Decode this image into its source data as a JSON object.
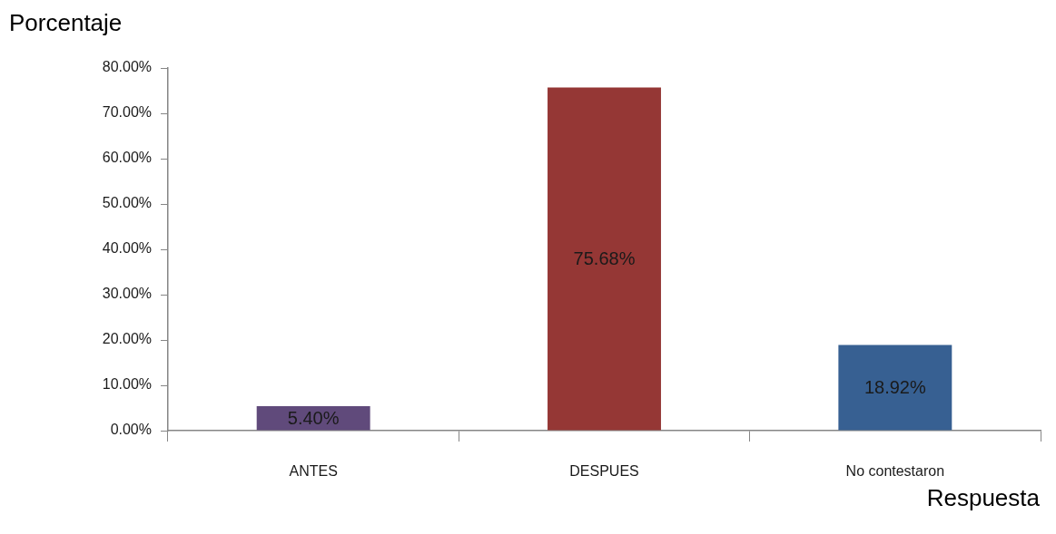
{
  "chart_data": {
    "type": "bar",
    "xlabel": "Respuesta",
    "ylabel": "Porcentaje",
    "categories": [
      "ANTES",
      "DESPUES",
      "No contestaron"
    ],
    "values": [
      5.4,
      75.68,
      18.92
    ],
    "colors": [
      "#604a7b",
      "#953735",
      "#376092"
    ],
    "value_labels": [
      "5.40%",
      "75.68%",
      "18.92%"
    ],
    "ylim": [
      0,
      80
    ],
    "yticks": [
      {
        "value": 0,
        "label": "0.00%"
      },
      {
        "value": 10,
        "label": "10.00%"
      },
      {
        "value": 20,
        "label": "20.00%"
      },
      {
        "value": 30,
        "label": "30.00%"
      },
      {
        "value": 40,
        "label": "40.00%"
      },
      {
        "value": 50,
        "label": "50.00%"
      },
      {
        "value": 60,
        "label": "60.00%"
      },
      {
        "value": 70,
        "label": "70.00%"
      },
      {
        "value": 80,
        "label": "80.00%"
      }
    ]
  }
}
